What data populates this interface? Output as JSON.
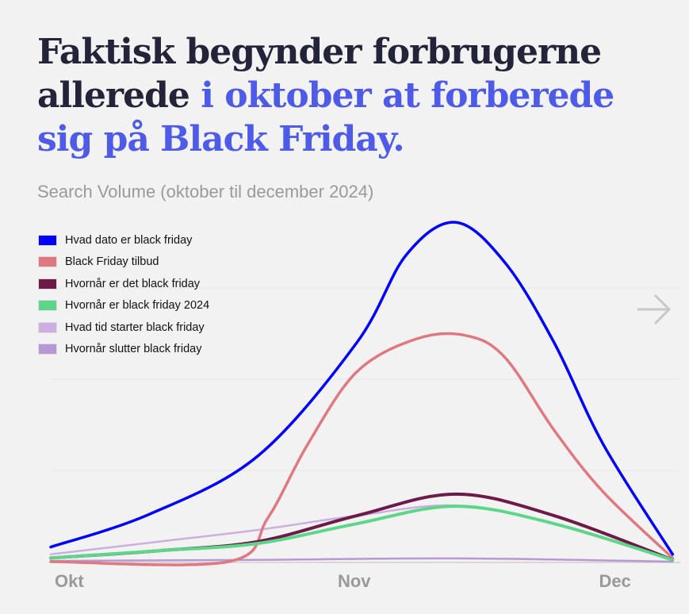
{
  "title": {
    "part1": "Faktisk begynder forbrugerne allerede ",
    "part2": "i oktober at forberede sig på Black Friday."
  },
  "subtitle": "Search Volume (oktober til december 2024)",
  "chart_data": {
    "type": "line",
    "title": "Search Volume (oktober til december 2024)",
    "xlabel": "",
    "ylabel": "",
    "x_unit": "days since 1 Oct 2024",
    "x_ticks": [
      {
        "x": 0,
        "label": "Okt"
      },
      {
        "x": 31,
        "label": "Nov"
      },
      {
        "x": 61,
        "label": "Dec"
      }
    ],
    "xlim": [
      0,
      63
    ],
    "ylim": [
      0,
      100
    ],
    "grid": true,
    "gridlines": [
      25,
      50,
      75
    ],
    "legend_position": "top-left",
    "series": [
      {
        "name": "Hvad dato er black friday",
        "color": "#0000ff",
        "x": [
          0,
          10,
          21,
          31,
          36,
          41,
          46,
          51,
          56,
          63
        ],
        "y": [
          4,
          13,
          29,
          60,
          84,
          93,
          82,
          60,
          32,
          2
        ]
      },
      {
        "name": "Black Friday tilbud",
        "color": "#e07880",
        "x": [
          0,
          18,
          22,
          26,
          31,
          37,
          42,
          46,
          51,
          56,
          63
        ],
        "y": [
          0,
          0,
          12,
          32,
          52,
          61,
          62,
          56,
          36,
          19,
          1
        ]
      },
      {
        "name": "Hvornår er det black friday",
        "color": "#6e1a48",
        "x": [
          0,
          11,
          21,
          31,
          41,
          51,
          63
        ],
        "y": [
          1,
          3,
          5.5,
          12.6,
          18.5,
          12.6,
          0.5
        ]
      },
      {
        "name": "Hvornår er black friday 2024",
        "color": "#5ed68a",
        "x": [
          0,
          11,
          21,
          31,
          41,
          51,
          63
        ],
        "y": [
          1,
          3,
          5,
          10.4,
          15.2,
          10.4,
          0.5
        ]
      },
      {
        "name": "Hvad tid starter black friday",
        "color": "#cdaee0",
        "x": [
          0,
          11,
          21,
          31,
          41,
          51,
          63
        ],
        "y": [
          2,
          5.5,
          8.7,
          12.6,
          15.4,
          10.4,
          0.5
        ]
      },
      {
        "name": "Hvornår slutter black friday",
        "color": "#b898d4",
        "x": [
          0,
          21,
          41,
          63
        ],
        "y": [
          0.2,
          0.5,
          0.9,
          0
        ]
      }
    ]
  }
}
